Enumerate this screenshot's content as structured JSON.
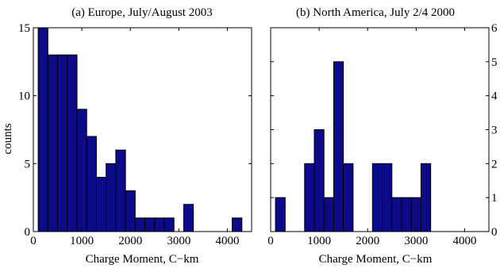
{
  "chart_data": [
    {
      "type": "bar",
      "title": "(a) Europe, July/August 2003",
      "xlabel": "Charge Moment, C−km",
      "ylabel": "counts",
      "xlim": [
        0,
        4500
      ],
      "ylim": [
        0,
        15
      ],
      "xticks": [
        "0",
        "1000",
        "2000",
        "3000",
        "4000"
      ],
      "yticks": [
        "0",
        "5",
        "10",
        "15"
      ],
      "y_axis_side": "left",
      "bin_width": 200,
      "bins": [
        {
          "x": 200,
          "count": 15
        },
        {
          "x": 400,
          "count": 13
        },
        {
          "x": 600,
          "count": 13
        },
        {
          "x": 800,
          "count": 13
        },
        {
          "x": 1000,
          "count": 9
        },
        {
          "x": 1200,
          "count": 7
        },
        {
          "x": 1400,
          "count": 4
        },
        {
          "x": 1600,
          "count": 5
        },
        {
          "x": 1800,
          "count": 6
        },
        {
          "x": 2000,
          "count": 3
        },
        {
          "x": 2200,
          "count": 1
        },
        {
          "x": 2400,
          "count": 1
        },
        {
          "x": 2600,
          "count": 1
        },
        {
          "x": 2800,
          "count": 1
        },
        {
          "x": 3200,
          "count": 2
        },
        {
          "x": 4200,
          "count": 1
        }
      ]
    },
    {
      "type": "bar",
      "title": "(b) North America, July 2/4 2000",
      "xlabel": "Charge Moment, C−km",
      "ylabel": "",
      "xlim": [
        0,
        4500
      ],
      "ylim": [
        0,
        6
      ],
      "xticks": [
        "0",
        "1000",
        "2000",
        "3000",
        "4000"
      ],
      "yticks": [
        "0",
        "1",
        "2",
        "3",
        "4",
        "5",
        "6"
      ],
      "y_axis_side": "right",
      "bin_width": 200,
      "bins": [
        {
          "x": 200,
          "count": 1
        },
        {
          "x": 800,
          "count": 2
        },
        {
          "x": 1000,
          "count": 3
        },
        {
          "x": 1200,
          "count": 1
        },
        {
          "x": 1400,
          "count": 5
        },
        {
          "x": 1600,
          "count": 2
        },
        {
          "x": 2200,
          "count": 2
        },
        {
          "x": 2400,
          "count": 2
        },
        {
          "x": 2600,
          "count": 1
        },
        {
          "x": 2800,
          "count": 1
        },
        {
          "x": 3000,
          "count": 1
        },
        {
          "x": 3200,
          "count": 2
        }
      ]
    }
  ],
  "colors": {
    "bar_fill": "#0b0b8a",
    "bar_edge": "#000000",
    "frame": "#000000"
  }
}
